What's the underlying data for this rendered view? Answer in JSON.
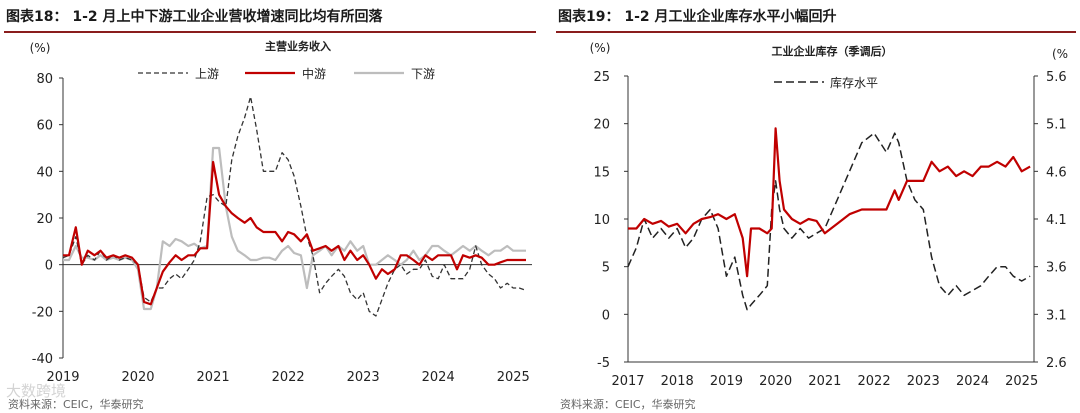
{
  "charts": {
    "left": {
      "heading": "图表18：  1-2 月上中下游工业企业营收增速同比均有所回落",
      "source": "资料来源：CEIC，华泰研究",
      "unit": "(%)",
      "chart_title": "主营业务收入"
    },
    "right": {
      "heading": "图表19：  1-2 月工业企业库存水平小幅回升",
      "source": "资料来源：CEIC，华泰研究",
      "unit_left": "(%)",
      "unit_right": "(%",
      "chart_title": "工业企业库存（季调后）"
    }
  },
  "watermark": "大数跨境",
  "colors": {
    "upstream": "#333333",
    "midstream": "#c00000",
    "downstream": "#bdbdbd",
    "red_rule": "#8a1d1d"
  },
  "chart_data": [
    {
      "type": "line",
      "title": "主营业务收入",
      "ylabel": "(%)",
      "ylim": [
        -40,
        80
      ],
      "yticks": [
        -40,
        -20,
        0,
        20,
        40,
        60,
        80
      ],
      "xlim": [
        2019.0,
        2025.25
      ],
      "xticks": [
        2019,
        2020,
        2021,
        2022,
        2023,
        2024,
        2025
      ],
      "legend": "top",
      "series": [
        {
          "name": "上游",
          "style": "dashed",
          "x": [
            2019.0,
            2019.08,
            2019.17,
            2019.25,
            2019.33,
            2019.42,
            2019.5,
            2019.58,
            2019.67,
            2019.75,
            2019.83,
            2019.92,
            2020.0,
            2020.08,
            2020.17,
            2020.25,
            2020.33,
            2020.42,
            2020.5,
            2020.58,
            2020.67,
            2020.75,
            2020.83,
            2020.92,
            2021.0,
            2021.08,
            2021.17,
            2021.25,
            2021.33,
            2021.42,
            2021.5,
            2021.58,
            2021.67,
            2021.75,
            2021.83,
            2021.92,
            2022.0,
            2022.08,
            2022.17,
            2022.25,
            2022.33,
            2022.42,
            2022.5,
            2022.58,
            2022.67,
            2022.75,
            2022.83,
            2022.92,
            2023.0,
            2023.08,
            2023.17,
            2023.25,
            2023.33,
            2023.42,
            2023.5,
            2023.58,
            2023.67,
            2023.75,
            2023.83,
            2023.92,
            2024.0,
            2024.08,
            2024.17,
            2024.25,
            2024.33,
            2024.42,
            2024.5,
            2024.58,
            2024.67,
            2024.75,
            2024.83,
            2024.92,
            2025.0,
            2025.08,
            2025.17
          ],
          "values": [
            3,
            4,
            12,
            0,
            4,
            2,
            6,
            2,
            4,
            2,
            3,
            2,
            0,
            -14,
            -16,
            -10,
            -10,
            -6,
            -4,
            -6,
            -2,
            2,
            10,
            29,
            30,
            27,
            25,
            45,
            55,
            63,
            72,
            58,
            40,
            40,
            40,
            48,
            45,
            38,
            25,
            12,
            4,
            -12,
            -8,
            -5,
            -2,
            -5,
            -12,
            -15,
            -12,
            -20,
            -22,
            -15,
            -8,
            -2,
            0,
            -4,
            -2,
            -2,
            2,
            -5,
            -6,
            0,
            -6,
            -6,
            -6,
            -2,
            8,
            0,
            -4,
            -6,
            -10,
            -8,
            -10,
            -10,
            -11
          ]
        },
        {
          "name": "中游",
          "style": "solid",
          "x": [
            2019.0,
            2019.08,
            2019.17,
            2019.25,
            2019.33,
            2019.42,
            2019.5,
            2019.58,
            2019.67,
            2019.75,
            2019.83,
            2019.92,
            2020.0,
            2020.08,
            2020.17,
            2020.25,
            2020.33,
            2020.42,
            2020.5,
            2020.58,
            2020.67,
            2020.75,
            2020.83,
            2020.92,
            2021.0,
            2021.08,
            2021.17,
            2021.25,
            2021.33,
            2021.42,
            2021.5,
            2021.58,
            2021.67,
            2021.75,
            2021.83,
            2021.92,
            2022.0,
            2022.08,
            2022.17,
            2022.25,
            2022.33,
            2022.42,
            2022.5,
            2022.58,
            2022.67,
            2022.75,
            2022.83,
            2022.92,
            2023.0,
            2023.08,
            2023.17,
            2023.25,
            2023.33,
            2023.42,
            2023.5,
            2023.58,
            2023.67,
            2023.75,
            2023.83,
            2023.92,
            2024.0,
            2024.08,
            2024.17,
            2024.25,
            2024.33,
            2024.42,
            2024.5,
            2024.58,
            2024.67,
            2024.75,
            2024.83,
            2024.92,
            2025.0,
            2025.08,
            2025.17
          ],
          "values": [
            4,
            4,
            16,
            0,
            6,
            4,
            6,
            3,
            4,
            3,
            4,
            3,
            0,
            -16,
            -17,
            -10,
            -3,
            1,
            4,
            2,
            4,
            4,
            7,
            7,
            44,
            30,
            25,
            22,
            20,
            18,
            20,
            16,
            14,
            14,
            14,
            10,
            14,
            13,
            10,
            13,
            6,
            7,
            8,
            6,
            8,
            2,
            6,
            2,
            4,
            0,
            -6,
            -2,
            -4,
            -2,
            4,
            4,
            2,
            0,
            4,
            2,
            4,
            4,
            4,
            -2,
            4,
            3,
            4,
            3,
            0,
            0,
            1,
            2,
            2,
            2,
            2
          ]
        },
        {
          "name": "下游",
          "style": "solid",
          "x": [
            2019.0,
            2019.08,
            2019.17,
            2019.25,
            2019.33,
            2019.42,
            2019.5,
            2019.58,
            2019.67,
            2019.75,
            2019.83,
            2019.92,
            2020.0,
            2020.08,
            2020.17,
            2020.25,
            2020.33,
            2020.42,
            2020.5,
            2020.58,
            2020.67,
            2020.75,
            2020.83,
            2020.92,
            2021.0,
            2021.08,
            2021.17,
            2021.25,
            2021.33,
            2021.42,
            2021.5,
            2021.58,
            2021.67,
            2021.75,
            2021.83,
            2021.92,
            2022.0,
            2022.08,
            2022.17,
            2022.25,
            2022.33,
            2022.42,
            2022.5,
            2022.58,
            2022.67,
            2022.75,
            2022.83,
            2022.92,
            2023.0,
            2023.08,
            2023.17,
            2023.25,
            2023.33,
            2023.42,
            2023.5,
            2023.58,
            2023.67,
            2023.75,
            2023.83,
            2023.92,
            2024.0,
            2024.08,
            2024.17,
            2024.25,
            2024.33,
            2024.42,
            2024.5,
            2024.58,
            2024.67,
            2024.75,
            2024.83,
            2024.92,
            2025.0,
            2025.08,
            2025.17
          ],
          "values": [
            2,
            2,
            8,
            3,
            3,
            2,
            4,
            2,
            3,
            2,
            3,
            2,
            -2,
            -19,
            -19,
            -10,
            10,
            8,
            11,
            10,
            8,
            9,
            7,
            8,
            50,
            50,
            25,
            12,
            6,
            4,
            2,
            2,
            3,
            3,
            2,
            6,
            8,
            5,
            4,
            -10,
            4,
            6,
            8,
            4,
            8,
            6,
            10,
            6,
            8,
            0,
            0,
            2,
            4,
            2,
            0,
            2,
            6,
            2,
            4,
            8,
            8,
            6,
            4,
            6,
            8,
            6,
            8,
            6,
            4,
            6,
            6,
            8,
            6,
            6,
            6
          ]
        }
      ]
    },
    {
      "type": "line",
      "title": "工业企业库存（季调后）",
      "ylabel": "(%)",
      "ylim": [
        -5,
        25
      ],
      "yticks": [
        -5,
        0,
        5,
        10,
        15,
        20,
        25
      ],
      "y2lim": [
        2.6,
        5.6
      ],
      "y2ticks": [
        2.6,
        3.1,
        3.6,
        4.1,
        4.6,
        5.1,
        5.6
      ],
      "xlim": [
        2017.0,
        2025.25
      ],
      "xticks": [
        2017,
        2018,
        2019,
        2020,
        2021,
        2022,
        2023,
        2024,
        2025
      ],
      "legend": "top-left",
      "series": [
        {
          "name": "",
          "axis": "left",
          "style": "solid",
          "x": [
            2017.0,
            2017.17,
            2017.33,
            2017.5,
            2017.67,
            2017.83,
            2018.0,
            2018.17,
            2018.33,
            2018.5,
            2018.67,
            2018.83,
            2019.0,
            2019.17,
            2019.33,
            2019.42,
            2019.5,
            2019.67,
            2019.83,
            2019.92,
            2020.0,
            2020.08,
            2020.17,
            2020.33,
            2020.5,
            2020.67,
            2020.83,
            2021.0,
            2021.25,
            2021.5,
            2021.75,
            2022.0,
            2022.25,
            2022.42,
            2022.5,
            2022.67,
            2022.83,
            2023.0,
            2023.17,
            2023.33,
            2023.5,
            2023.67,
            2023.83,
            2024.0,
            2024.17,
            2024.33,
            2024.5,
            2024.67,
            2024.83,
            2025.0,
            2025.17
          ],
          "values": [
            9,
            9,
            10,
            9.5,
            9.8,
            9.2,
            9.5,
            8.5,
            9.5,
            10,
            10.2,
            10.5,
            10,
            10.5,
            8,
            4,
            9,
            9,
            8.5,
            9,
            19.5,
            14,
            11,
            10,
            9.5,
            10,
            9.8,
            8.5,
            9.5,
            10.5,
            11,
            11,
            11,
            13,
            12,
            14,
            14,
            14,
            16,
            15,
            15.5,
            14.5,
            15,
            14.5,
            15.5,
            15.5,
            16,
            15.5,
            16.5,
            15,
            15.5
          ]
        },
        {
          "name": "库存水平",
          "axis": "right",
          "style": "dashed",
          "x": [
            2017.0,
            2017.17,
            2017.33,
            2017.5,
            2017.67,
            2017.83,
            2018.0,
            2018.17,
            2018.33,
            2018.5,
            2018.67,
            2018.83,
            2019.0,
            2019.17,
            2019.33,
            2019.42,
            2019.5,
            2019.67,
            2019.83,
            2019.92,
            2020.0,
            2020.08,
            2020.17,
            2020.33,
            2020.5,
            2020.67,
            2020.83,
            2021.0,
            2021.25,
            2021.5,
            2021.75,
            2022.0,
            2022.25,
            2022.42,
            2022.5,
            2022.67,
            2022.83,
            2023.0,
            2023.17,
            2023.33,
            2023.5,
            2023.67,
            2023.83,
            2024.0,
            2024.17,
            2024.33,
            2024.5,
            2024.67,
            2024.83,
            2025.0,
            2025.17
          ],
          "values": [
            3.6,
            3.8,
            4.1,
            3.9,
            4.0,
            3.9,
            4.0,
            3.8,
            3.9,
            4.1,
            4.2,
            4.0,
            3.5,
            3.7,
            3.3,
            3.15,
            3.2,
            3.3,
            3.4,
            4.2,
            4.5,
            4.2,
            4.0,
            3.9,
            4.0,
            3.9,
            3.95,
            4.0,
            4.3,
            4.6,
            4.9,
            5.0,
            4.8,
            5.0,
            4.9,
            4.5,
            4.3,
            4.2,
            3.7,
            3.4,
            3.3,
            3.4,
            3.3,
            3.35,
            3.4,
            3.5,
            3.6,
            3.6,
            3.5,
            3.45,
            3.5
          ]
        }
      ]
    }
  ]
}
